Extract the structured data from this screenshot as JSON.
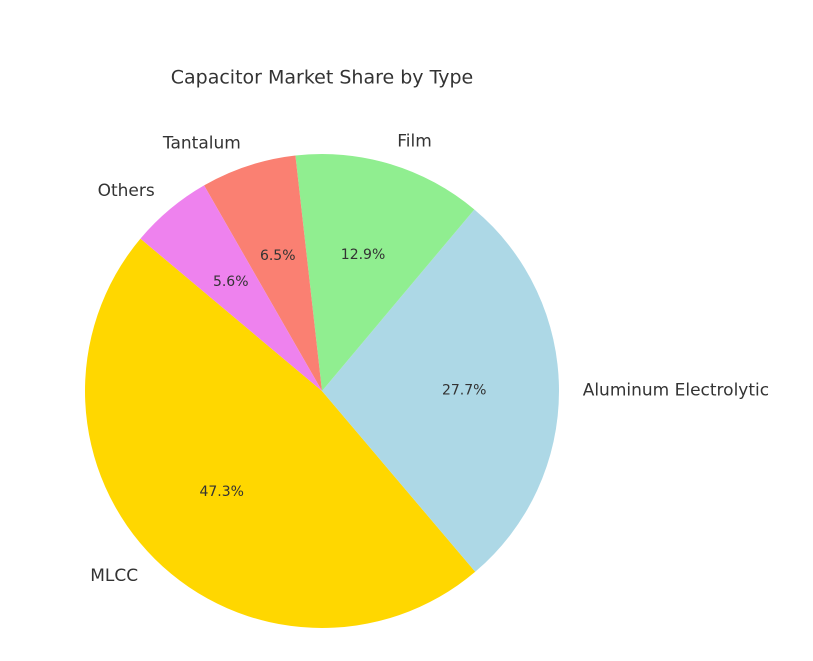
{
  "chart_data": {
    "type": "pie",
    "title": "Capacitor Market Share by Type",
    "categories": [
      "MLCC",
      "Aluminum Electrolytic",
      "Film",
      "Tantalum",
      "Others"
    ],
    "values": [
      47.3,
      27.7,
      12.9,
      6.5,
      5.6
    ],
    "value_labels": [
      "47.3%",
      "27.7%",
      "12.9%",
      "6.5%",
      "5.6%"
    ],
    "colors": [
      "#ffd700",
      "#add8e6",
      "#90ee90",
      "#fa8072",
      "#ee82ee"
    ]
  }
}
